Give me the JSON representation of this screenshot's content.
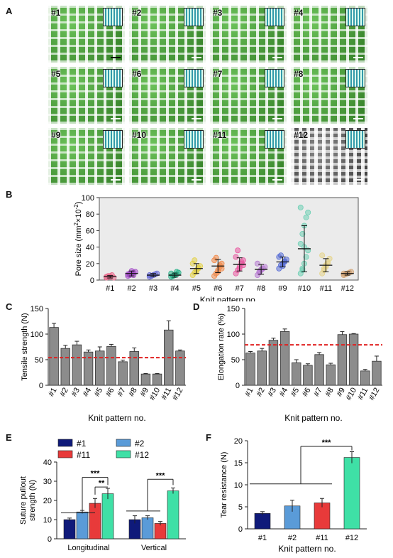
{
  "panel_labels": {
    "a": "A",
    "b": "B",
    "c": "C",
    "d": "D",
    "e": "E",
    "f": "F"
  },
  "micrographs": [
    "#1",
    "#2",
    "#3",
    "#4",
    "#5",
    "#6",
    "#7",
    "#8",
    "#9",
    "#10",
    "#11",
    "#12"
  ],
  "chart_data": [
    {
      "id": "B",
      "type": "scatter",
      "categories": [
        "#1",
        "#2",
        "#3",
        "#4",
        "#5",
        "#6",
        "#7",
        "#8",
        "#9",
        "#10",
        "#11",
        "#12"
      ],
      "mean": [
        4,
        8,
        6,
        6,
        14,
        17,
        19,
        13,
        22,
        38,
        18,
        8
      ],
      "sd": [
        1.5,
        3,
        2,
        2.5,
        6,
        8,
        8,
        6,
        6,
        28,
        8,
        2
      ],
      "points": [
        [
          3,
          4,
          5,
          6,
          3,
          4,
          5,
          4
        ],
        [
          5,
          6,
          8,
          9,
          10,
          7,
          8,
          11,
          6
        ],
        [
          4,
          5,
          6,
          7,
          8,
          6,
          5
        ],
        [
          4,
          5,
          6,
          7,
          9,
          8,
          5,
          6,
          10
        ],
        [
          6,
          9,
          12,
          14,
          17,
          20,
          24,
          10,
          15
        ],
        [
          5,
          8,
          12,
          16,
          20,
          24,
          27,
          10,
          18,
          14
        ],
        [
          8,
          12,
          16,
          20,
          24,
          28,
          36,
          14,
          22,
          18
        ],
        [
          6,
          9,
          12,
          14,
          16,
          20,
          10,
          13
        ],
        [
          14,
          18,
          20,
          22,
          25,
          28,
          30,
          17,
          23
        ],
        [
          8,
          14,
          20,
          28,
          36,
          44,
          56,
          66,
          76,
          82,
          88,
          12,
          40
        ],
        [
          8,
          12,
          16,
          20,
          26,
          30,
          14,
          18,
          22
        ],
        [
          6,
          7,
          8,
          9,
          10,
          8
        ]
      ],
      "colors": [
        "#e76f8f",
        "#a34fc6",
        "#6b6fd6",
        "#2bb38a",
        "#e3d24a",
        "#f08a4b",
        "#e85aa0",
        "#b77bd1",
        "#5a6fd6",
        "#6fd0b5",
        "#e6d48a",
        "#d2a373"
      ],
      "ylabel_main": "Pore size (mm",
      "ylabel_sup": "2",
      "ylabel_mid": "×10",
      "ylabel_sup2": "-2",
      "ylabel_end": ")",
      "xlabel": "Knit pattern no.",
      "ylim": [
        0,
        100
      ],
      "yticks": [
        0,
        20,
        40,
        60,
        80,
        100
      ],
      "grid": false
    },
    {
      "id": "C",
      "type": "bar",
      "categories": [
        "#1",
        "#2",
        "#3",
        "#4",
        "#5",
        "#6",
        "#7",
        "#8",
        "#9",
        "#10",
        "#11",
        "#12"
      ],
      "values": [
        113,
        72,
        79,
        65,
        67,
        76,
        46,
        66,
        22,
        22,
        108,
        67
      ],
      "errors": [
        8,
        6,
        7,
        4,
        8,
        4,
        3,
        7,
        1,
        1,
        18,
        2
      ],
      "reference_line": 54,
      "ylabel": "Tensile strength (N)",
      "xlabel": "Knit pattern no.",
      "ylim": [
        0,
        150
      ],
      "yticks": [
        0,
        50,
        100,
        150
      ]
    },
    {
      "id": "D",
      "type": "bar",
      "categories": [
        "#1",
        "#2",
        "#3",
        "#4",
        "#5",
        "#6",
        "#7",
        "#8",
        "#9",
        "#10",
        "#11",
        "#12"
      ],
      "values": [
        63,
        67,
        88,
        105,
        44,
        39,
        60,
        40,
        99,
        100,
        28,
        47
      ],
      "errors": [
        3,
        5,
        4,
        5,
        6,
        3,
        4,
        3,
        6,
        1,
        3,
        10
      ],
      "reference_line": 79,
      "ylabel": "Elongation rate (%)",
      "xlabel": "Knit pattern no.",
      "ylim": [
        0,
        150
      ],
      "yticks": [
        0,
        50,
        100,
        150
      ]
    },
    {
      "id": "E",
      "type": "bar",
      "categories": [
        "Longitudinal",
        "Vertical"
      ],
      "series": [
        {
          "name": "#1",
          "values": [
            10,
            10
          ],
          "errors": [
            0.8,
            2
          ]
        },
        {
          "name": "#2",
          "values": [
            14,
            11
          ],
          "errors": [
            0.8,
            1
          ]
        },
        {
          "name": "#11",
          "values": [
            18.5,
            8
          ],
          "errors": [
            2.5,
            1
          ]
        },
        {
          "name": "#12",
          "values": [
            23.5,
            25
          ],
          "errors": [
            2.8,
            1.5
          ]
        }
      ],
      "series_colors": [
        "#0f1a7a",
        "#5a9bd8",
        "#e83a3a",
        "#3fe0a6"
      ],
      "legend_placement": "top",
      "annotations": [
        "***",
        "**",
        "***"
      ],
      "ylabel": "Suture pullout strength (N)",
      "ylabel_line1": "Suture pullout",
      "ylabel_line2": "strength (N)",
      "ylim": [
        0,
        40
      ],
      "yticks": [
        0,
        10,
        20,
        30,
        40
      ]
    },
    {
      "id": "F",
      "type": "bar",
      "categories": [
        "#1",
        "#2",
        "#11",
        "#12"
      ],
      "values": [
        3.5,
        5.2,
        5.9,
        16.2
      ],
      "errors": [
        0.4,
        1.3,
        1.0,
        1.3
      ],
      "colors": [
        "#0f1a7a",
        "#5a9bd8",
        "#e83a3a",
        "#3fe0a6"
      ],
      "annotations": [
        "***"
      ],
      "ylabel": "Tear resistance (N)",
      "xlabel": "Knit pattern no.",
      "ylim": [
        0,
        20
      ],
      "yticks": [
        0,
        5,
        10,
        15,
        20
      ]
    }
  ]
}
